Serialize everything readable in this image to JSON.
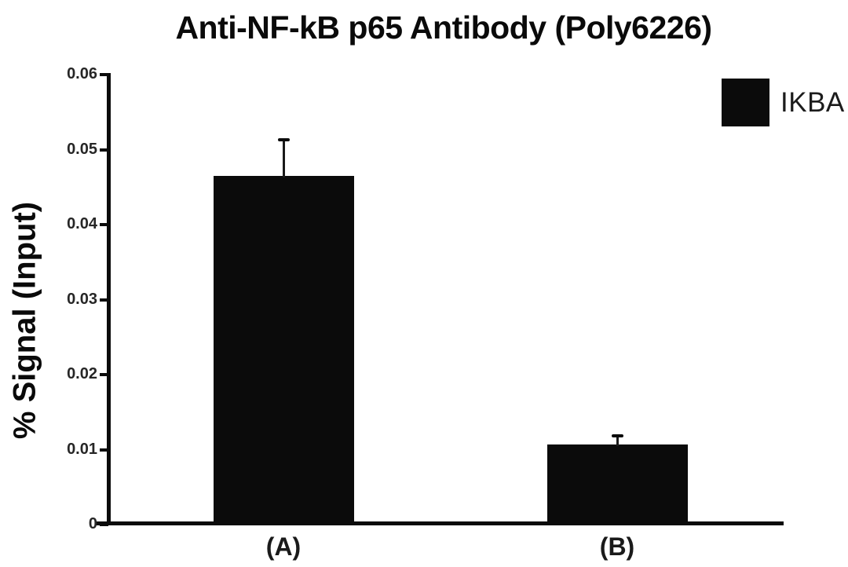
{
  "figure": {
    "background": "#ffffff",
    "ink_color": "#0b0b0b"
  },
  "chart_data": {
    "type": "bar",
    "title": "Anti-NF-kB p65 Antibody (Poly6226)",
    "xlabel": "",
    "ylabel": "% Signal (Input)",
    "categories": [
      "(A)",
      "(B)"
    ],
    "series": [
      {
        "name": "IKBA",
        "values": [
          0.0465,
          0.0107
        ],
        "errors_plus": [
          0.0048,
          0.0011
        ],
        "color": "#0b0b0b"
      }
    ],
    "ylim": [
      0,
      0.06
    ],
    "yticks": [
      0,
      0.01,
      0.02,
      0.03,
      0.04,
      0.05,
      0.06
    ],
    "ytick_labels": [
      "0",
      "0.01",
      "0.02",
      "0.03",
      "0.04",
      "0.05",
      "0.06"
    ],
    "grid": false,
    "legend": {
      "position": "top-right",
      "entries": [
        {
          "label": "IKBA",
          "color": "#0b0b0b"
        }
      ]
    }
  }
}
